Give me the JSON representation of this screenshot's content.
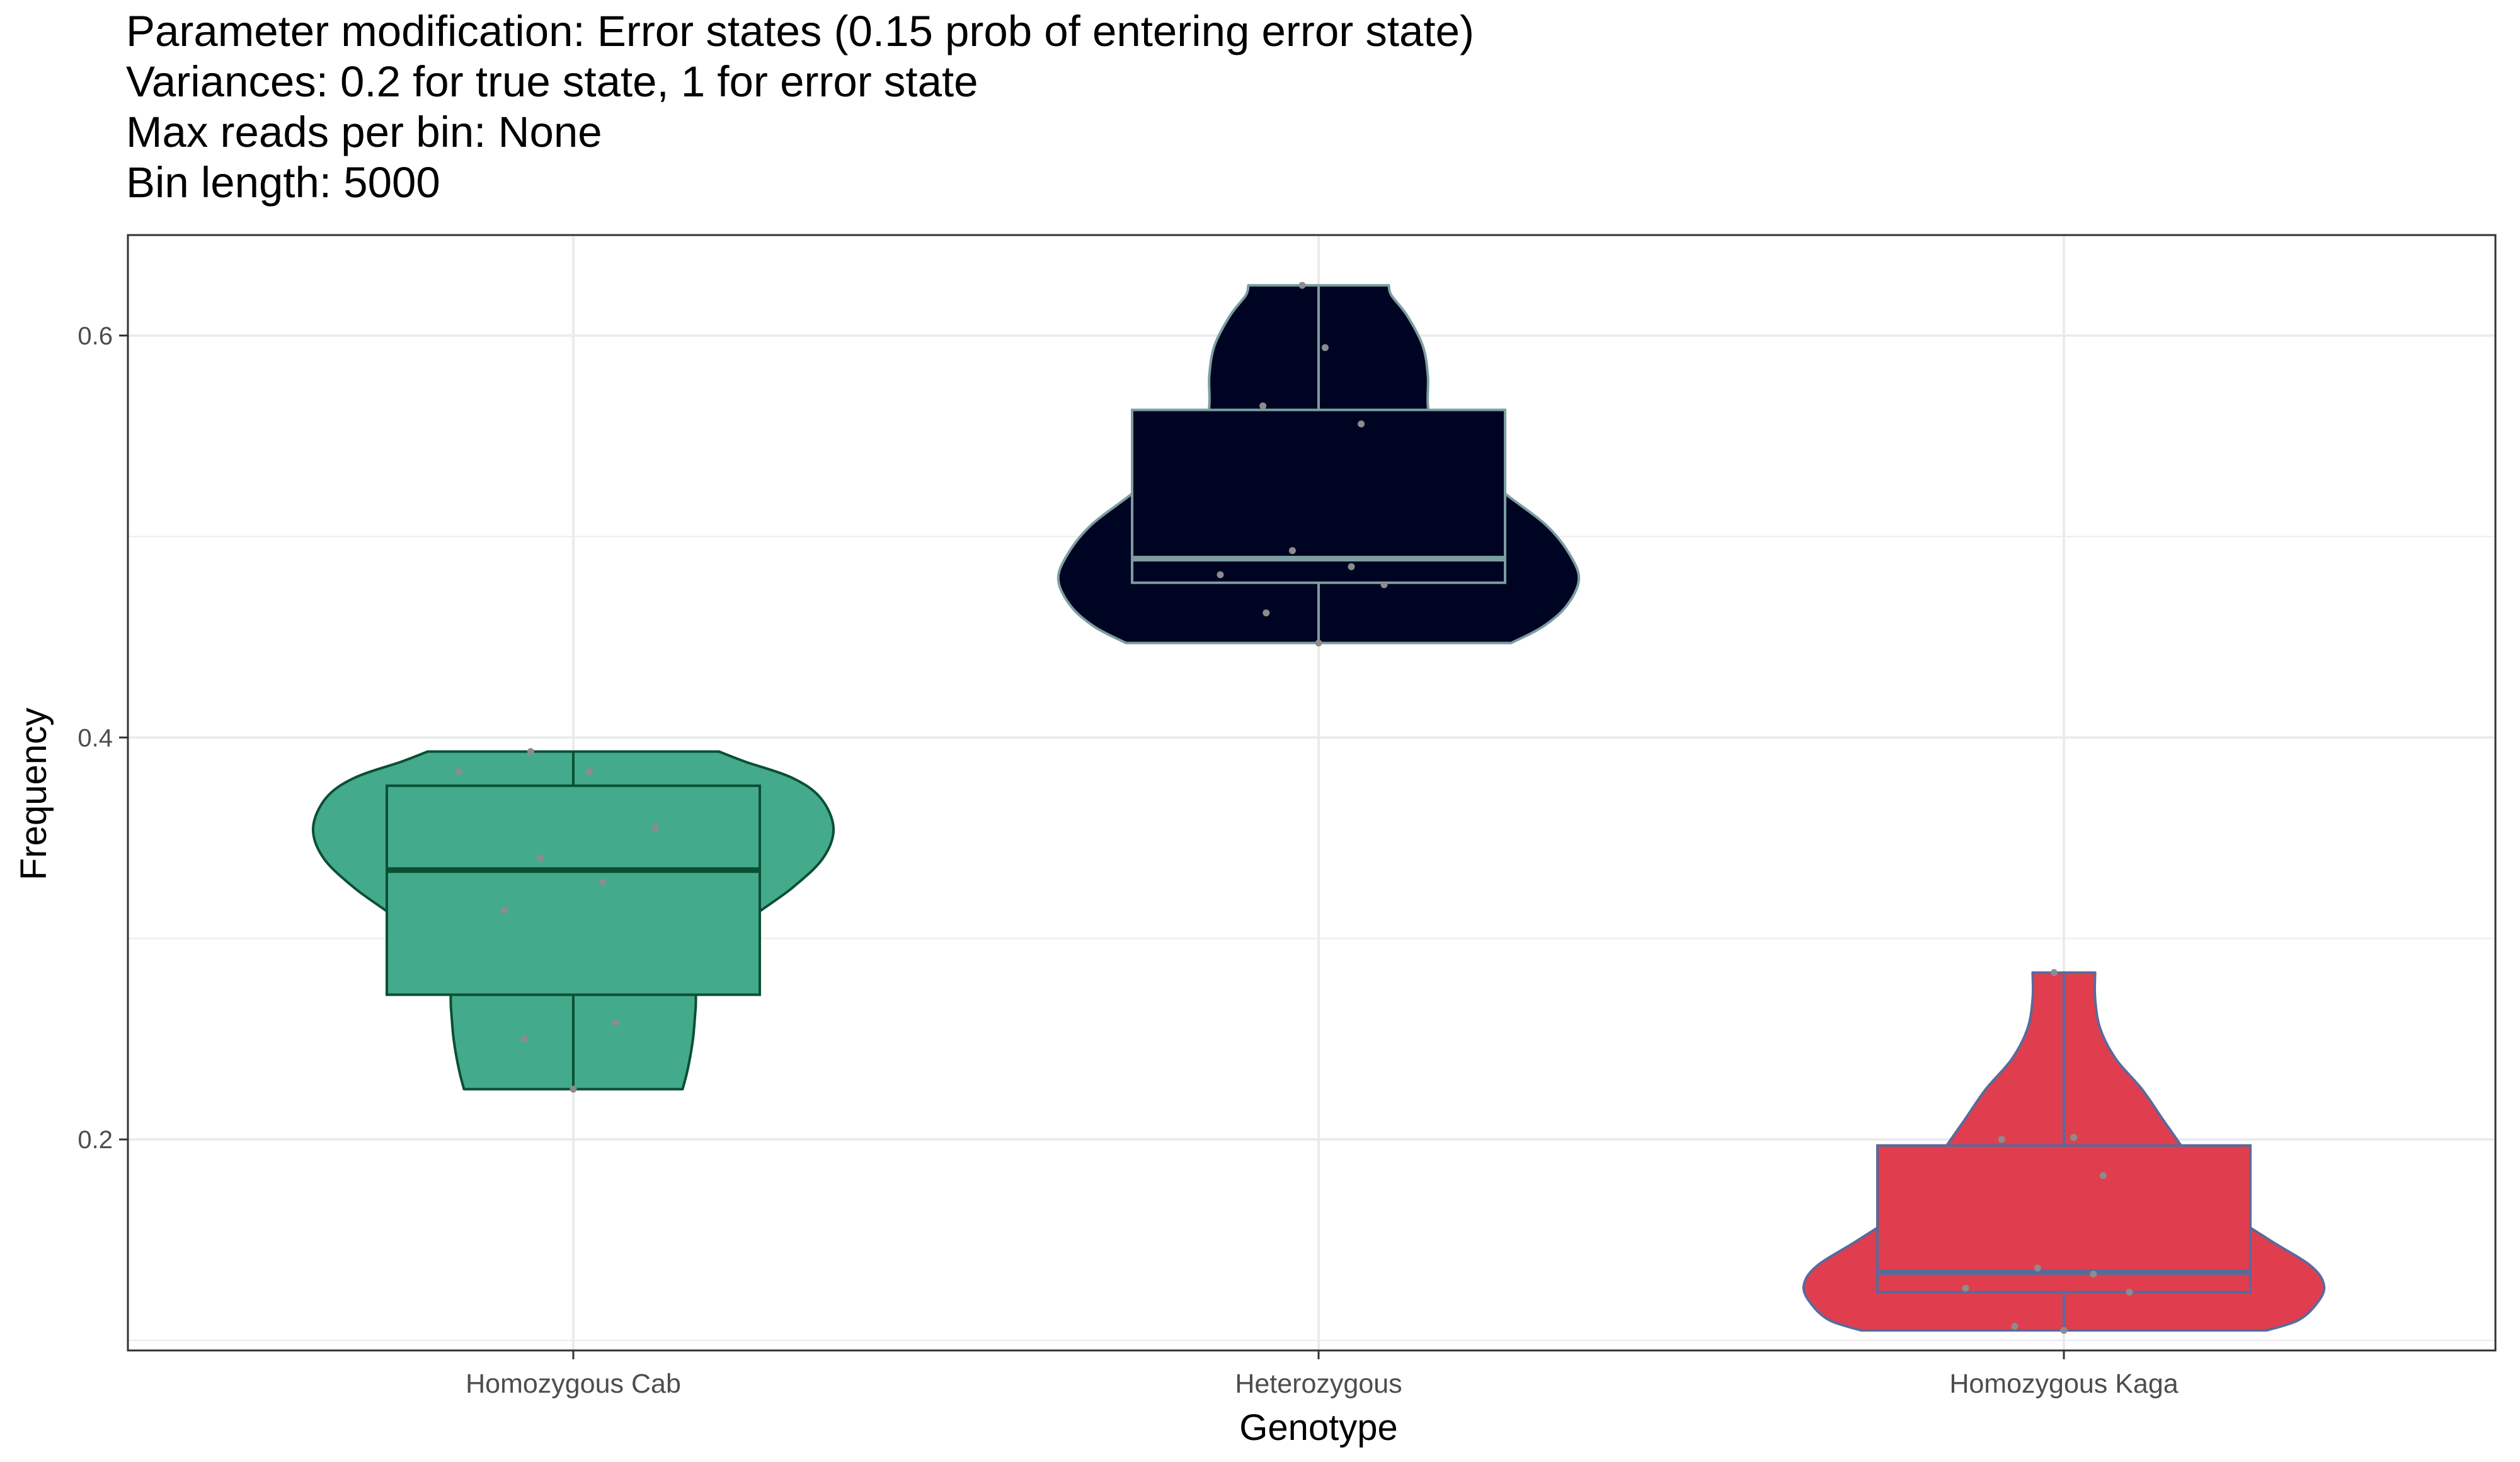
{
  "chart_data": {
    "type": "violin",
    "title_lines": [
      "Parameter modification: Error states (0.15 prob of entering error state)",
      "Variances: 0.2 for true state, 1 for error state",
      "Max reads per bin: None",
      "Bin length: 5000"
    ],
    "xlabel": "Genotype",
    "ylabel": "Frequency",
    "ylim": [
      0.095,
      0.65
    ],
    "y_ticks": [
      0.2,
      0.4,
      0.6
    ],
    "y_tick_labels": [
      "0.2",
      "0.4",
      "0.6"
    ],
    "y_minor_ticks": [
      0.1,
      0.3,
      0.5
    ],
    "grid": true,
    "legend": "none",
    "categories": [
      "Homozygous Cab",
      "Heterozygous",
      "Homozygous Kaga"
    ],
    "series": [
      {
        "category": "Homozygous Cab",
        "fill": "#43AA8B",
        "stroke": "#0B4F33",
        "range": [
          0.225,
          0.393
        ],
        "violin_profile": [
          [
            0.225,
            0.42
          ],
          [
            0.235,
            0.44
          ],
          [
            0.25,
            0.46
          ],
          [
            0.265,
            0.47
          ],
          [
            0.28,
            0.48
          ],
          [
            0.295,
            0.55
          ],
          [
            0.31,
            0.68
          ],
          [
            0.325,
            0.84
          ],
          [
            0.34,
            0.96
          ],
          [
            0.355,
            1.0
          ],
          [
            0.37,
            0.95
          ],
          [
            0.38,
            0.84
          ],
          [
            0.388,
            0.66
          ],
          [
            0.393,
            0.56
          ]
        ],
        "box": {
          "q1": 0.272,
          "median": 0.334,
          "q3": 0.376,
          "whisker_low": 0.225,
          "whisker_high": 0.393
        },
        "points": [
          {
            "x": -0.35,
            "y": 0.383
          },
          {
            "x": -0.13,
            "y": 0.393
          },
          {
            "x": 0.05,
            "y": 0.383
          },
          {
            "x": -0.1,
            "y": 0.34
          },
          {
            "x": 0.25,
            "y": 0.355
          },
          {
            "x": 0.09,
            "y": 0.328
          },
          {
            "x": -0.21,
            "y": 0.314
          },
          {
            "x": -0.15,
            "y": 0.25
          },
          {
            "x": 0.13,
            "y": 0.258
          },
          {
            "x": 0.0,
            "y": 0.225
          }
        ]
      },
      {
        "category": "Heterozygous",
        "fill": "#000423",
        "stroke": "#7B9EA0",
        "range": [
          0.447,
          0.625
        ],
        "violin_profile": [
          [
            0.447,
            0.74
          ],
          [
            0.455,
            0.86
          ],
          [
            0.465,
            0.95
          ],
          [
            0.478,
            1.0
          ],
          [
            0.49,
            0.97
          ],
          [
            0.505,
            0.88
          ],
          [
            0.52,
            0.73
          ],
          [
            0.535,
            0.58
          ],
          [
            0.55,
            0.44
          ],
          [
            0.565,
            0.42
          ],
          [
            0.58,
            0.42
          ],
          [
            0.595,
            0.4
          ],
          [
            0.61,
            0.34
          ],
          [
            0.62,
            0.28
          ],
          [
            0.625,
            0.27
          ]
        ],
        "box": {
          "q1": 0.477,
          "median": 0.489,
          "q3": 0.563,
          "whisker_low": 0.447,
          "whisker_high": 0.625
        },
        "points": [
          {
            "x": -0.05,
            "y": 0.625
          },
          {
            "x": 0.02,
            "y": 0.594
          },
          {
            "x": -0.17,
            "y": 0.565
          },
          {
            "x": 0.13,
            "y": 0.556
          },
          {
            "x": -0.08,
            "y": 0.493
          },
          {
            "x": 0.1,
            "y": 0.485
          },
          {
            "x": -0.3,
            "y": 0.481
          },
          {
            "x": 0.2,
            "y": 0.476
          },
          {
            "x": -0.16,
            "y": 0.462
          },
          {
            "x": 0.0,
            "y": 0.447
          }
        ]
      },
      {
        "category": "Homozygous Kaga",
        "fill": "#E03E4F",
        "stroke": "#5A6A9A",
        "range": [
          0.105,
          0.283
        ],
        "violin_profile": [
          [
            0.105,
            0.78
          ],
          [
            0.11,
            0.9
          ],
          [
            0.118,
            0.97
          ],
          [
            0.127,
            1.0
          ],
          [
            0.137,
            0.95
          ],
          [
            0.15,
            0.79
          ],
          [
            0.165,
            0.62
          ],
          [
            0.18,
            0.53
          ],
          [
            0.195,
            0.46
          ],
          [
            0.21,
            0.38
          ],
          [
            0.225,
            0.3
          ],
          [
            0.24,
            0.2
          ],
          [
            0.255,
            0.14
          ],
          [
            0.27,
            0.12
          ],
          [
            0.283,
            0.12
          ]
        ],
        "box": {
          "q1": 0.124,
          "median": 0.134,
          "q3": 0.197,
          "whisker_low": 0.105,
          "whisker_high": 0.283
        },
        "points": [
          {
            "x": -0.03,
            "y": 0.283
          },
          {
            "x": -0.19,
            "y": 0.2
          },
          {
            "x": 0.03,
            "y": 0.201
          },
          {
            "x": 0.12,
            "y": 0.182
          },
          {
            "x": -0.08,
            "y": 0.136
          },
          {
            "x": 0.09,
            "y": 0.133
          },
          {
            "x": -0.3,
            "y": 0.126
          },
          {
            "x": 0.2,
            "y": 0.124
          },
          {
            "x": -0.15,
            "y": 0.107
          },
          {
            "x": 0.0,
            "y": 0.105
          }
        ]
      }
    ],
    "point_color": "#8C8C8C",
    "grid_color": "#EBEBEB",
    "panel_border_color": "#333333"
  }
}
